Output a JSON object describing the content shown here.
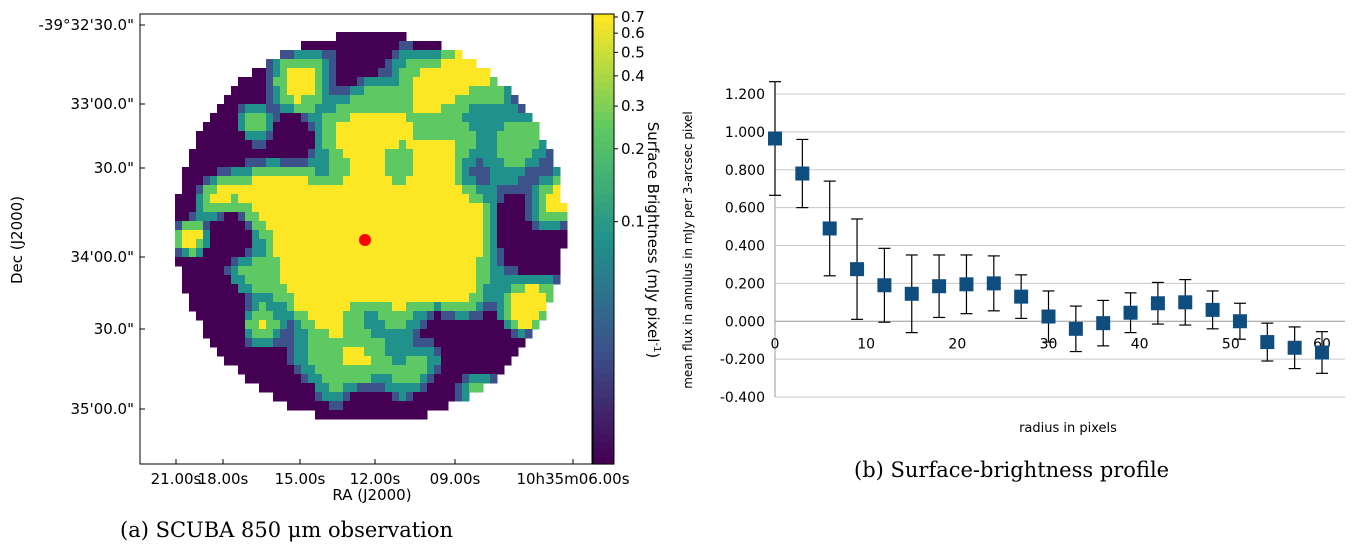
{
  "chart_data": [
    {
      "type": "heatmap",
      "xlabel": "RA (J2000)",
      "ylabel": "Dec (J2000)",
      "x_ticks": [
        "21.00s",
        "18.00s",
        "15.00s",
        "12.00s",
        "09.00s",
        "10h35m06.00s"
      ],
      "y_ticks": [
        "-39°32'30.0\"",
        "33'00.0\"",
        "30.0\"",
        "34'00.0\"",
        "30.0\"",
        "35'00.0\""
      ],
      "colorbar": {
        "label": "Surface Brightness (mJy pixel",
        "label_sup": "-1",
        "label_end": ")",
        "ticks": [
          "0.7",
          "0.6",
          "0.5",
          "0.4",
          "0.3",
          "0.2",
          "0.1"
        ],
        "scale": "log"
      },
      "marker": {
        "color": "#ff0000"
      },
      "colormap": [
        "#440154",
        "#3b528b",
        "#21918c",
        "#5ec962",
        "#fde725"
      ],
      "caption": "(a) SCUBA 850 μm observation"
    },
    {
      "type": "scatter",
      "x": [
        0,
        3,
        6,
        9,
        12,
        15,
        18,
        21,
        24,
        27,
        30,
        33,
        36,
        39,
        42,
        45,
        48,
        51,
        54,
        57,
        60
      ],
      "y": [
        0.965,
        0.78,
        0.49,
        0.275,
        0.19,
        0.145,
        0.185,
        0.195,
        0.2,
        0.13,
        0.025,
        -0.04,
        -0.01,
        0.045,
        0.095,
        0.1,
        0.06,
        0.0,
        -0.11,
        -0.14,
        -0.165
      ],
      "yerr": [
        0.3,
        0.18,
        0.25,
        0.265,
        0.195,
        0.205,
        0.165,
        0.155,
        0.145,
        0.115,
        0.135,
        0.12,
        0.12,
        0.105,
        0.11,
        0.12,
        0.1,
        0.095,
        0.1,
        0.11,
        0.11
      ],
      "xlim": [
        0,
        62
      ],
      "ylim": [
        -0.4,
        1.2
      ],
      "y_ticks": [
        "1.200",
        "1.000",
        "0.800",
        "0.600",
        "0.400",
        "0.200",
        "0.000",
        "-0.200",
        "-0.400"
      ],
      "x_ticks": [
        "0",
        "10",
        "20",
        "30",
        "40",
        "50",
        "60"
      ],
      "xlabel": "radius in pixels",
      "ylabel": "mean flux in annulus in mJy per 3-arcsec pixel",
      "grid": true,
      "marker_color": "#0f4d7e",
      "caption": "(b) Surface-brightness profile"
    }
  ]
}
